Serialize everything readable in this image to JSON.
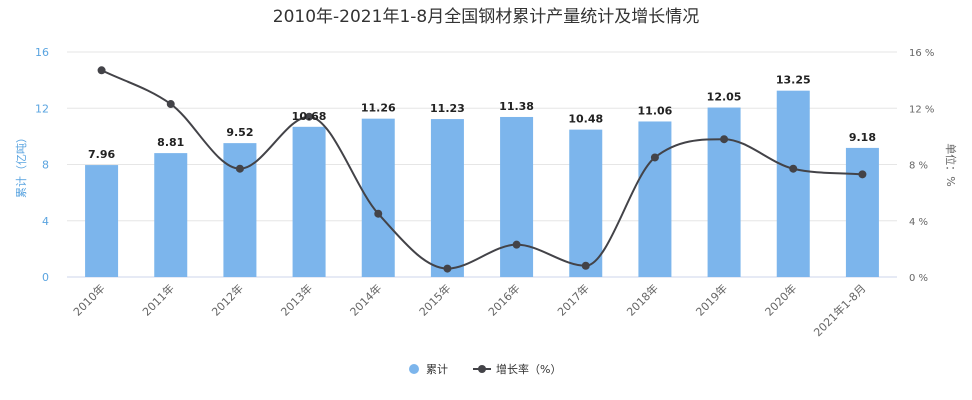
{
  "chart_data": {
    "type": "bar",
    "title": "2010年-2021年1-8月全国钢材累计产量统计及增长情况",
    "categories": [
      "2010年",
      "2011年",
      "2012年",
      "2013年",
      "2014年",
      "2015年",
      "2016年",
      "2017年",
      "2018年",
      "2019年",
      "2020年",
      "2021年1-8月"
    ],
    "series": [
      {
        "name": "累计",
        "type": "bar",
        "axis": "left",
        "color": "#7cb5ec",
        "values": [
          7.96,
          8.81,
          9.52,
          10.68,
          11.26,
          11.23,
          11.38,
          10.48,
          11.06,
          12.05,
          13.25,
          9.18
        ],
        "labels": [
          "7.96",
          "8.81",
          "9.52",
          "10.68",
          "11.26",
          "11.23",
          "11.38",
          "10.48",
          "11.06",
          "12.05",
          "13.25",
          "9.18"
        ]
      },
      {
        "name": "增长率（%）",
        "type": "line",
        "smooth": true,
        "axis": "right",
        "color": "#434348",
        "values": [
          14.7,
          12.3,
          7.7,
          11.4,
          4.5,
          0.6,
          2.3,
          0.8,
          8.5,
          9.8,
          7.7,
          7.3
        ]
      }
    ],
    "ylabel": "累计（亿吨）",
    "ylabel_right": "单位：%",
    "ylim": [
      0,
      16
    ],
    "yticks": [
      "0",
      "4",
      "8",
      "12",
      "16"
    ],
    "ylim_right": [
      0,
      16
    ],
    "yticks_right": [
      "0 %",
      "4 %",
      "8 %",
      "12 %",
      "16 %"
    ],
    "grid": true,
    "legend_position": "bottom-center"
  }
}
